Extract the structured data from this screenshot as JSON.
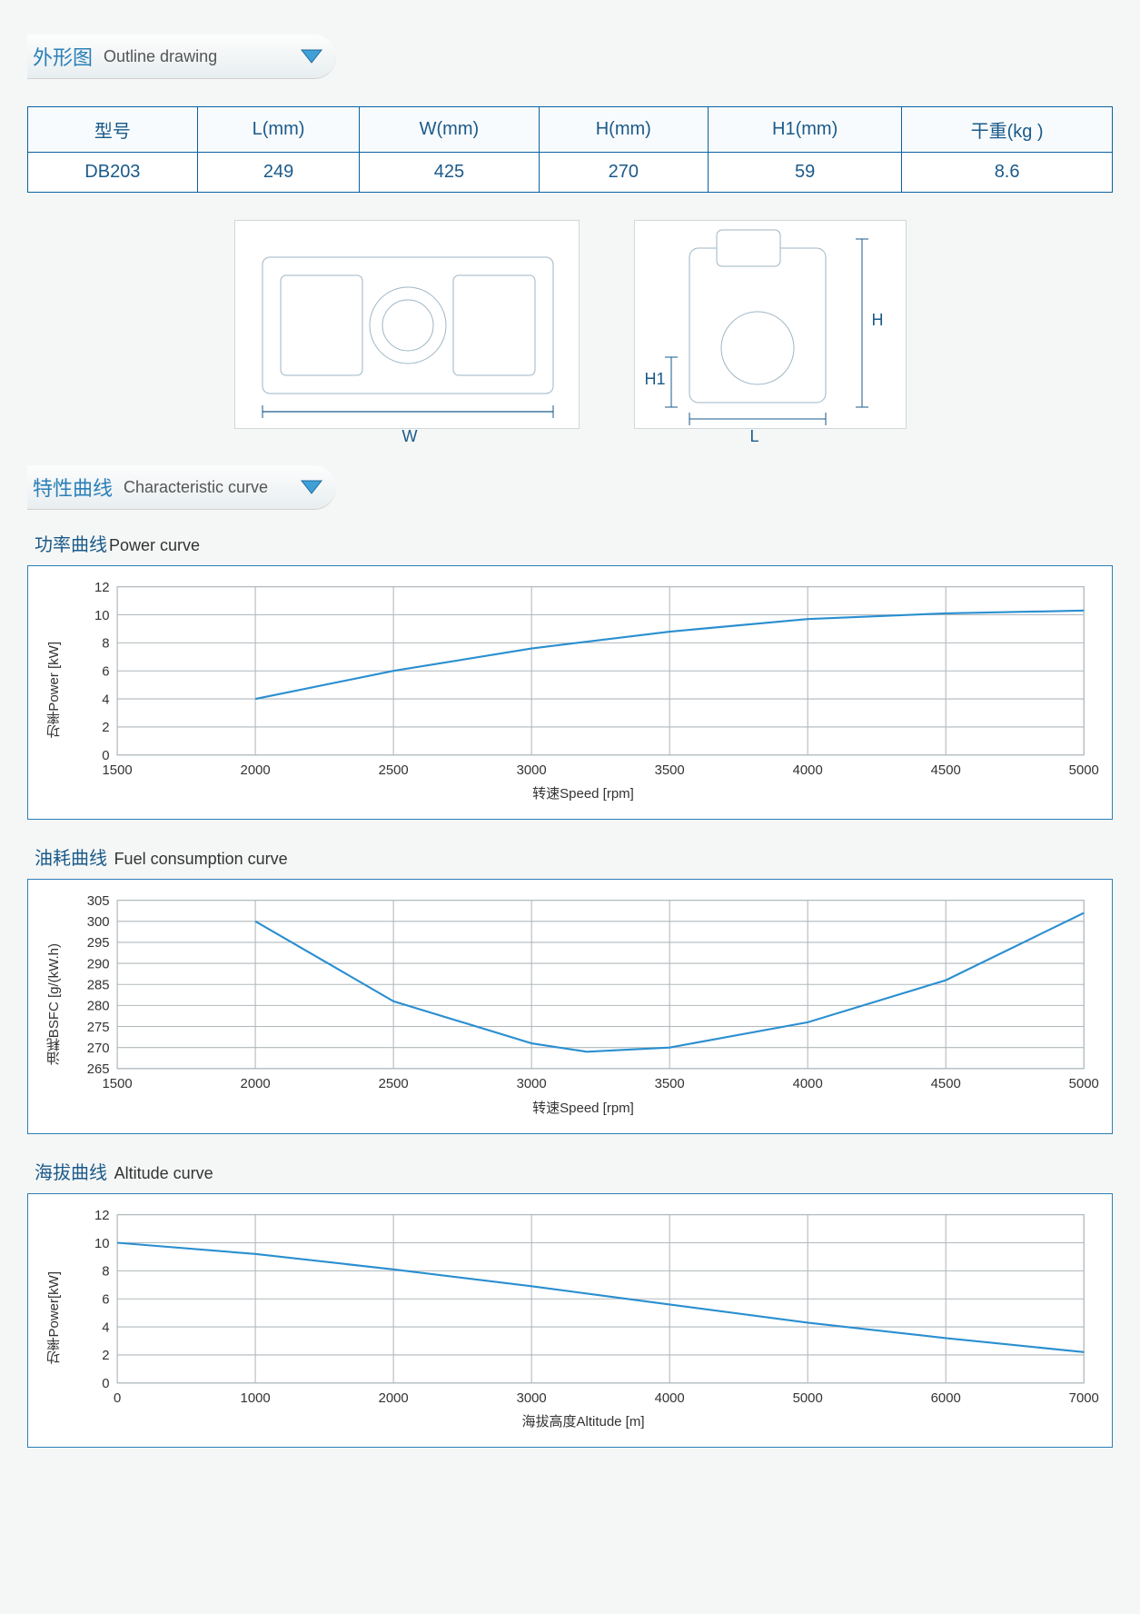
{
  "sections": {
    "outline": {
      "cn": "外形图",
      "en": "Outline drawing"
    },
    "curve": {
      "cn": "特性曲线",
      "en": "Characteristic curve"
    }
  },
  "dims_table": {
    "columns": [
      "型号",
      "L(mm)",
      "W(mm)",
      "H(mm)",
      "H1(mm)",
      "干重(kg )"
    ],
    "rows": [
      [
        "DB203",
        "249",
        "425",
        "270",
        "59",
        "8.6"
      ]
    ]
  },
  "drawing_labels": {
    "W": "W",
    "L": "L",
    "H": "H",
    "H1": "H1"
  },
  "charts": {
    "power": {
      "title_cn": "功率曲线",
      "title_en": "Power curve",
      "type": "line",
      "xlabel": "转速Speed [rpm]",
      "ylabel": "功率Power [kW]",
      "xlim": [
        1500,
        5000
      ],
      "xtick_step": 500,
      "ylim": [
        0,
        12
      ],
      "ytick_step": 2,
      "series_color": "#2a8fd0",
      "grid_color": "#b0b8bc",
      "border_color": "#2a7fb8",
      "background_color": "#ffffff",
      "label_fontsize": 15,
      "tick_fontsize": 14,
      "line_width": 2,
      "x": [
        2000,
        2500,
        3000,
        3500,
        4000,
        4500,
        5000
      ],
      "y": [
        4.0,
        6.0,
        7.6,
        8.8,
        9.7,
        10.1,
        10.3
      ]
    },
    "fuel": {
      "title_cn": "油耗曲线",
      "title_en": "Fuel consumption curve",
      "type": "line",
      "xlabel": "转速Speed [rpm]",
      "ylabel": "油耗BSFC [g/(kW.h)",
      "xlim": [
        1500,
        5000
      ],
      "xtick_step": 500,
      "ylim": [
        265,
        305
      ],
      "ytick_step": 5,
      "series_color": "#2a8fd0",
      "grid_color": "#b0b8bc",
      "border_color": "#2a7fb8",
      "background_color": "#ffffff",
      "label_fontsize": 15,
      "tick_fontsize": 14,
      "line_width": 2,
      "x": [
        2000,
        2500,
        3000,
        3200,
        3500,
        4000,
        4500,
        5000
      ],
      "y": [
        300,
        281,
        271,
        269,
        270,
        276,
        286,
        302
      ]
    },
    "altitude": {
      "title_cn": "海拔曲线",
      "title_en": "Altitude curve",
      "type": "line",
      "xlabel": "海拔高度Altitude [m]",
      "ylabel": "功率Power[kW]",
      "xlim": [
        0,
        7000
      ],
      "xtick_step": 1000,
      "ylim": [
        0,
        12
      ],
      "ytick_step": 2,
      "series_color": "#2a8fd0",
      "grid_color": "#b0b8bc",
      "border_color": "#2a7fb8",
      "background_color": "#ffffff",
      "label_fontsize": 15,
      "tick_fontsize": 14,
      "line_width": 2,
      "x": [
        0,
        1000,
        2000,
        3000,
        4000,
        5000,
        6000,
        7000
      ],
      "y": [
        10.0,
        9.2,
        8.1,
        6.9,
        5.6,
        4.3,
        3.2,
        2.2
      ]
    }
  }
}
